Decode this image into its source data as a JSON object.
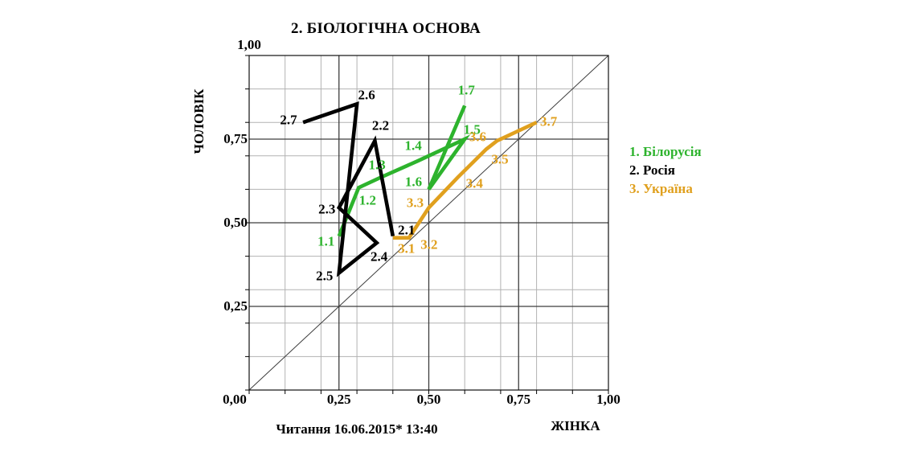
{
  "background": "#ffffff",
  "footer": {
    "text": "Читання 16.06.2015* 13:40"
  },
  "chart_data": {
    "type": "line",
    "title": "2. БІОЛОГІЧНА ОСНОВА",
    "x_axis": {
      "title": "ЖІНКА",
      "range": [
        0,
        1
      ],
      "tick_values": [
        0,
        0.25,
        0.5,
        0.75,
        1
      ],
      "tick_labels": [
        "0,00",
        "0,25",
        "0,50",
        "0,75",
        "1,00"
      ],
      "grid_step": 0.1
    },
    "y_axis": {
      "title": "ЧОЛОВІК",
      "range": [
        0,
        1
      ],
      "tick_values": [
        0,
        0.25,
        0.5,
        0.75,
        1
      ],
      "tick_labels": [
        "0,00",
        "0,25",
        "0,50",
        "0,75",
        "1,00"
      ],
      "grid_step": 0.1
    },
    "grid": true,
    "diagonal_line": true,
    "legend_position": "right",
    "colors": {
      "grid_minor": "#b2b2b2",
      "grid_major": "#3d3d3d",
      "border": "#111111",
      "diagonal": "#3d3d3d"
    },
    "series": [
      {
        "name": "1. Білорусія",
        "color": "#2db32d",
        "points": [
          {
            "label": "1.1",
            "x": 0.25,
            "y": 0.46,
            "dx": -16,
            "dy": 6
          },
          {
            "label": "1.2",
            "x": 0.305,
            "y": 0.605,
            "dx": 11,
            "dy": 16
          },
          {
            "label": "1.3",
            "x": 0.365,
            "y": 0.635,
            "dx": -4,
            "dy": -16
          },
          {
            "label": "1.4",
            "x": 0.47,
            "y": 0.685,
            "dx": -6,
            "dy": -19
          },
          {
            "label": "1.5",
            "x": 0.6,
            "y": 0.75,
            "dx": 9,
            "dy": -12
          },
          {
            "label": "1.6",
            "x": 0.5,
            "y": 0.6,
            "dx": -19,
            "dy": -9
          },
          {
            "label": "1.7",
            "x": 0.6,
            "y": 0.85,
            "dx": 2,
            "dy": -19
          }
        ]
      },
      {
        "name": "2. Росія",
        "color": "#000000",
        "points": [
          {
            "label": "2.1",
            "x": 0.4,
            "y": 0.46,
            "dx": 17,
            "dy": -8
          },
          {
            "label": "2.2",
            "x": 0.35,
            "y": 0.745,
            "dx": 7,
            "dy": -19
          },
          {
            "label": "2.3",
            "x": 0.25,
            "y": 0.545,
            "dx": -15,
            "dy": 2
          },
          {
            "label": "2.4",
            "x": 0.355,
            "y": 0.44,
            "dx": 3,
            "dy": 17
          },
          {
            "label": "2.5",
            "x": 0.25,
            "y": 0.35,
            "dx": -18,
            "dy": 4
          },
          {
            "label": "2.6",
            "x": 0.3,
            "y": 0.855,
            "dx": 12,
            "dy": -11
          },
          {
            "label": "2.7",
            "x": 0.15,
            "y": 0.8,
            "dx": -18,
            "dy": -3
          }
        ]
      },
      {
        "name": "3. Україна",
        "color": "#e0a01e",
        "points": [
          {
            "label": "3.1",
            "x": 0.4,
            "y": 0.455,
            "dx": 17,
            "dy": 13
          },
          {
            "label": "3.2",
            "x": 0.445,
            "y": 0.455,
            "dx": 25,
            "dy": 8
          },
          {
            "label": "3.3",
            "x": 0.5,
            "y": 0.545,
            "dx": -17,
            "dy": -6
          },
          {
            "label": "3.4",
            "x": 0.58,
            "y": 0.635,
            "dx": 21,
            "dy": 7
          },
          {
            "label": "3.5",
            "x": 0.66,
            "y": 0.72,
            "dx": 17,
            "dy": 13
          },
          {
            "label": "3.6",
            "x": 0.69,
            "y": 0.745,
            "dx": -24,
            "dy": -5
          },
          {
            "label": "3.7",
            "x": 0.8,
            "y": 0.8,
            "dx": 15,
            "dy": -1
          }
        ]
      }
    ]
  }
}
